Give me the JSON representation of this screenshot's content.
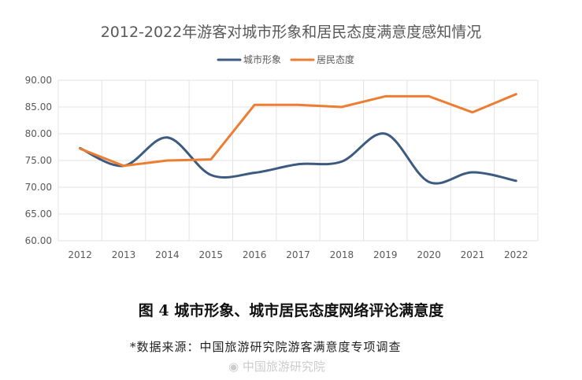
{
  "chart_data": {
    "type": "line",
    "title": "2012-2022年游客对城市形象和居民态度满意度感知情况",
    "categories": [
      "2012",
      "2013",
      "2014",
      "2015",
      "2016",
      "2017",
      "2018",
      "2019",
      "2020",
      "2021",
      "2022"
    ],
    "ylim": [
      60,
      90
    ],
    "yticks": [
      "60.00",
      "65.00",
      "70.00",
      "75.00",
      "80.00",
      "85.00",
      "90.00"
    ],
    "grid": true,
    "legend_position": "top-center",
    "series": [
      {
        "name": "城市形象",
        "color": "#3d5a80",
        "smooth": true,
        "values": [
          77.3,
          74.0,
          79.3,
          72.3,
          72.7,
          74.3,
          74.8,
          80.0,
          71.0,
          72.8,
          71.2
        ]
      },
      {
        "name": "居民态度",
        "color": "#ed7d31",
        "smooth": false,
        "values": [
          77.2,
          74.0,
          75.0,
          75.2,
          85.4,
          85.4,
          85.0,
          87.0,
          87.0,
          84.0,
          87.4
        ]
      }
    ]
  },
  "caption": "图 4  城市形象、城市居民态度网络评论满意度",
  "source": "*数据来源：中国旅游研究院游客满意度专项调查",
  "watermark": "中国旅游研究院"
}
